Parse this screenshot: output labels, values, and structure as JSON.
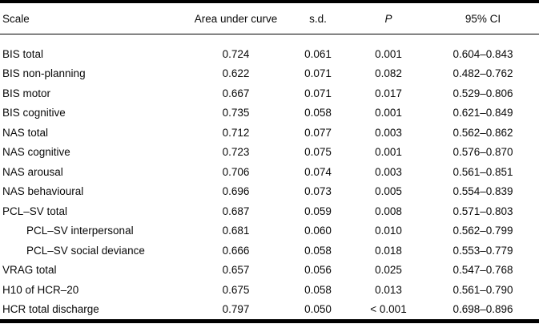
{
  "table": {
    "columns": {
      "scale": "Scale",
      "auc": "Area under curve",
      "sd": "s.d.",
      "p": "P",
      "ci": "95% CI"
    },
    "rows": [
      {
        "scale": "BIS total",
        "indent": false,
        "auc": "0.724",
        "sd": "0.061",
        "p": "0.001",
        "ci": "0.604–0.843"
      },
      {
        "scale": "BIS non-planning",
        "indent": false,
        "auc": "0.622",
        "sd": "0.071",
        "p": "0.082",
        "ci": "0.482–0.762"
      },
      {
        "scale": "BIS motor",
        "indent": false,
        "auc": "0.667",
        "sd": "0.071",
        "p": "0.017",
        "ci": "0.529–0.806"
      },
      {
        "scale": "BIS cognitive",
        "indent": false,
        "auc": "0.735",
        "sd": "0.058",
        "p": "0.001",
        "ci": "0.621–0.849"
      },
      {
        "scale": "NAS total",
        "indent": false,
        "auc": "0.712",
        "sd": "0.077",
        "p": "0.003",
        "ci": "0.562–0.862"
      },
      {
        "scale": "NAS cognitive",
        "indent": false,
        "auc": "0.723",
        "sd": "0.075",
        "p": "0.001",
        "ci": "0.576–0.870"
      },
      {
        "scale": "NAS arousal",
        "indent": false,
        "auc": "0.706",
        "sd": "0.074",
        "p": "0.003",
        "ci": "0.561–0.851"
      },
      {
        "scale": "NAS behavioural",
        "indent": false,
        "auc": "0.696",
        "sd": "0.073",
        "p": "0.005",
        "ci": "0.554–0.839"
      },
      {
        "scale": "PCL–SV total",
        "indent": false,
        "auc": "0.687",
        "sd": "0.059",
        "p": "0.008",
        "ci": "0.571–0.803"
      },
      {
        "scale": "PCL–SV interpersonal",
        "indent": true,
        "auc": "0.681",
        "sd": "0.060",
        "p": "0.010",
        "ci": "0.562–0.799"
      },
      {
        "scale": "PCL–SV social deviance",
        "indent": true,
        "auc": "0.666",
        "sd": "0.058",
        "p": "0.018",
        "ci": "0.553–0.779"
      },
      {
        "scale": "VRAG total",
        "indent": false,
        "auc": "0.657",
        "sd": "0.056",
        "p": "0.025",
        "ci": "0.547–0.768"
      },
      {
        "scale": "H10 of HCR–20",
        "indent": false,
        "auc": "0.675",
        "sd": "0.058",
        "p": "0.013",
        "ci": "0.561–0.790"
      },
      {
        "scale": "HCR total discharge",
        "indent": false,
        "auc": "0.797",
        "sd": "0.050",
        "p": "< 0.001",
        "ci": "0.698–0.896"
      }
    ]
  }
}
